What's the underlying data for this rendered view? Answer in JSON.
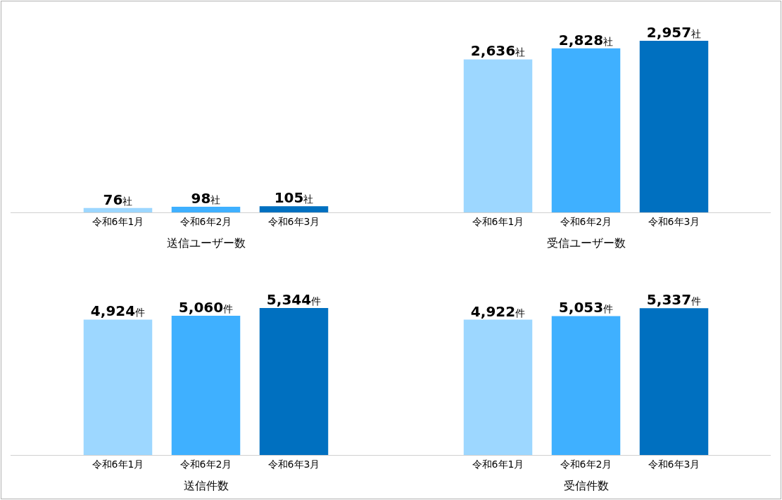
{
  "chart_data": [
    {
      "type": "bar",
      "xlabel": "送信ユーザー数",
      "categories": [
        "令和6年1月",
        "令和6年2月",
        "令和6年3月"
      ],
      "values": [
        76,
        98,
        105
      ],
      "colors": [
        "#9dd7ff",
        "#3fb0ff",
        "#0070c0"
      ],
      "value_labels": [
        "76社",
        "98社",
        "105社"
      ],
      "tick_labels": "x"
    },
    {
      "type": "bar",
      "xlabel": "受信ユーザー数",
      "categories": [
        "令和6年1月",
        "令和6年2月",
        "令和6年3月"
      ],
      "values": [
        2636,
        2828,
        2957
      ],
      "colors": [
        "#9dd7ff",
        "#3fb0ff",
        "#0070c0"
      ],
      "value_labels": [
        "2,636社",
        "2,828社",
        "2,957社"
      ],
      "tick_labels": "x"
    },
    {
      "type": "bar",
      "xlabel": "送信件数",
      "categories": [
        "令和6年1月",
        "令和6年2月",
        "令和6年3月"
      ],
      "values": [
        4924,
        5060,
        5344
      ],
      "colors": [
        "#9dd7ff",
        "#3fb0ff",
        "#0070c0"
      ],
      "value_labels": [
        "4,924件",
        "5,060件",
        "5,344件"
      ],
      "tick_labels": "x"
    },
    {
      "type": "bar",
      "xlabel": "受信件数",
      "categories": [
        "令和6年1月",
        "令和6年2月",
        "令和6年3月"
      ],
      "values": [
        4922,
        5053,
        5337
      ],
      "colors": [
        "#9dd7ff",
        "#3fb0ff",
        "#0070c0"
      ],
      "value_labels": [
        "4,922件",
        "5,053件",
        "5,337件"
      ],
      "tick_labels": "x"
    }
  ]
}
